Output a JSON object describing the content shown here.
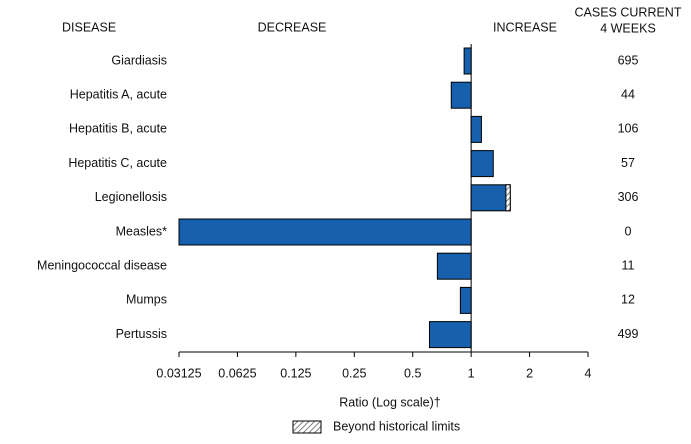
{
  "chart_data": {
    "type": "bar",
    "orientation": "horizontal",
    "xscale": "log",
    "log_base": 2,
    "header_disease": "DISEASE",
    "header_decrease": "DECREASE",
    "header_increase": "INCREASE",
    "header_cases": [
      "CASES CURRENT",
      "4 WEEKS"
    ],
    "categories": [
      "Giardiasis",
      "Hepatitis A, acute",
      "Hepatitis B, acute",
      "Hepatitis C, acute",
      "Legionellosis",
      "Measles*",
      "Meningococcal disease",
      "Mumps",
      "Pertussis"
    ],
    "values": [
      0.92,
      0.79,
      1.13,
      1.3,
      1.59,
      0.03125,
      0.67,
      0.88,
      0.61
    ],
    "historical_limits": [
      null,
      null,
      null,
      null,
      1.51,
      null,
      null,
      null,
      null
    ],
    "cases": [
      695,
      44,
      106,
      57,
      306,
      0,
      11,
      12,
      499
    ],
    "color": "#1660ae",
    "xlim": [
      0.03125,
      4
    ],
    "xticks": [
      0.03125,
      0.0625,
      0.125,
      0.25,
      0.5,
      1,
      2,
      4
    ],
    "xlabel": "Ratio (Log scale)†",
    "legend": "Beyond historical limits"
  }
}
